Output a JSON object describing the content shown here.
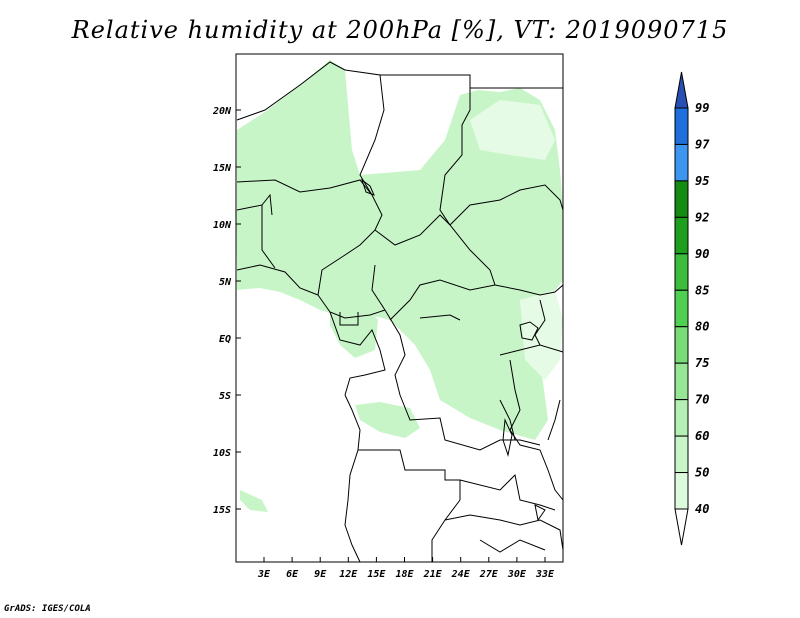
{
  "title": "Relative humidity at 200hPa [%], VT: 2019090715",
  "credit": "GrADS: IGES/COLA",
  "map": {
    "lon_labels": [
      "3E",
      "6E",
      "9E",
      "12E",
      "15E",
      "18E",
      "21E",
      "24E",
      "27E",
      "30E",
      "33E"
    ],
    "lat_labels": [
      "20N",
      "15N",
      "10N",
      "5N",
      "EQ",
      "5S",
      "10S",
      "15S"
    ],
    "lon_range": [
      0,
      35
    ],
    "lat_range": [
      -20,
      24.5
    ]
  },
  "colorbar": {
    "levels": [
      "40",
      "50",
      "60",
      "70",
      "75",
      "80",
      "85",
      "90",
      "92",
      "95",
      "97",
      "99"
    ],
    "colors": [
      "#f0fff0",
      "#dcfadc",
      "#c8f5c8",
      "#b4f0b4",
      "#96e696",
      "#78dc78",
      "#50d050",
      "#3cbe3c",
      "#1ea01e",
      "#148c14",
      "#3c96f0",
      "#1e6edc",
      "#2850b4"
    ]
  }
}
